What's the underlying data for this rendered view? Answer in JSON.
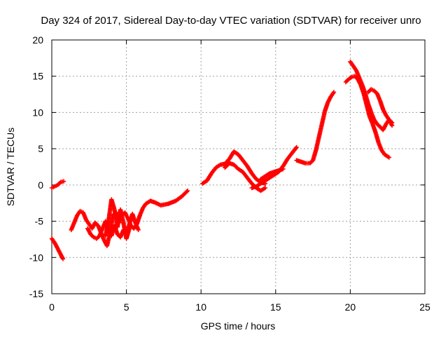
{
  "chart_data": {
    "type": "scatter",
    "title": "Day 324 of 2017, Sidereal Day-to-day VTEC variation (SDTVAR) for receiver unro",
    "xlabel": "GPS time / hours",
    "ylabel": "SDTVAR / TECUs",
    "xlim": [
      0,
      25
    ],
    "ylim": [
      -15,
      20
    ],
    "xticks": [
      0,
      5,
      10,
      15,
      20,
      25
    ],
    "yticks": [
      -15,
      -10,
      -5,
      0,
      5,
      10,
      15,
      20
    ],
    "grid": true,
    "marker": "plus",
    "series": [
      {
        "color": "#ff0000",
        "segments": [
          [
            [
              0.0,
              -0.4
            ],
            [
              0.2,
              -0.2
            ],
            [
              0.4,
              0.0
            ],
            [
              0.6,
              0.4
            ],
            [
              0.8,
              0.5
            ]
          ],
          [
            [
              0.0,
              -7.4
            ],
            [
              0.2,
              -8.0
            ],
            [
              0.4,
              -8.8
            ],
            [
              0.6,
              -9.6
            ],
            [
              0.75,
              -10.2
            ]
          ],
          [
            [
              1.3,
              -6.2
            ],
            [
              1.5,
              -5.2
            ],
            [
              1.7,
              -4.2
            ],
            [
              1.9,
              -3.6
            ],
            [
              2.1,
              -3.8
            ],
            [
              2.3,
              -4.8
            ],
            [
              2.5,
              -5.4
            ],
            [
              2.7,
              -6.0
            ],
            [
              2.9,
              -5.2
            ],
            [
              3.1,
              -5.6
            ],
            [
              3.3,
              -6.6
            ],
            [
              3.5,
              -7.6
            ],
            [
              3.7,
              -8.4
            ],
            [
              3.9,
              -6.6
            ],
            [
              4.1,
              -4.2
            ],
            [
              4.3,
              -3.8
            ],
            [
              4.5,
              -5.2
            ],
            [
              4.7,
              -4.2
            ],
            [
              4.9,
              -3.8
            ],
            [
              5.1,
              -4.6
            ],
            [
              5.3,
              -5.6
            ],
            [
              5.5,
              -6.0
            ],
            [
              5.7,
              -5.4
            ],
            [
              5.9,
              -4.2
            ],
            [
              6.1,
              -3.2
            ],
            [
              6.3,
              -2.6
            ],
            [
              6.6,
              -2.2
            ],
            [
              6.9,
              -2.4
            ],
            [
              7.3,
              -2.8
            ],
            [
              7.8,
              -2.6
            ],
            [
              8.3,
              -2.2
            ],
            [
              8.7,
              -1.6
            ],
            [
              9.1,
              -0.8
            ]
          ],
          [
            [
              2.4,
              -6.0
            ],
            [
              2.6,
              -6.8
            ],
            [
              2.8,
              -7.2
            ],
            [
              3.0,
              -7.4
            ],
            [
              3.2,
              -7.0
            ],
            [
              3.4,
              -6.0
            ],
            [
              3.6,
              -5.0
            ],
            [
              3.8,
              -6.4
            ],
            [
              4.0,
              -7.0
            ],
            [
              4.2,
              -5.6
            ],
            [
              4.4,
              -6.8
            ],
            [
              4.6,
              -7.2
            ],
            [
              4.8,
              -6.2
            ],
            [
              5.0,
              -6.8
            ],
            [
              5.2,
              -5.4
            ],
            [
              5.4,
              -4.0
            ],
            [
              5.6,
              -5.2
            ],
            [
              5.8,
              -6.2
            ]
          ],
          [
            [
              3.6,
              -7.0
            ],
            [
              3.8,
              -5.0
            ],
            [
              4.0,
              -2.0
            ],
            [
              4.2,
              -3.4
            ],
            [
              4.4,
              -5.8
            ],
            [
              4.6,
              -3.4
            ],
            [
              4.8,
              -5.2
            ],
            [
              5.0,
              -7.4
            ],
            [
              5.2,
              -6.0
            ]
          ],
          [
            [
              10.1,
              0.2
            ],
            [
              10.4,
              0.6
            ],
            [
              10.7,
              1.6
            ],
            [
              11.0,
              2.4
            ],
            [
              11.3,
              2.8
            ],
            [
              11.6,
              2.9
            ],
            [
              11.9,
              3.6
            ],
            [
              12.2,
              4.6
            ],
            [
              12.5,
              4.2
            ],
            [
              12.8,
              3.4
            ],
            [
              13.1,
              2.6
            ],
            [
              13.4,
              1.6
            ],
            [
              13.7,
              0.8
            ],
            [
              14.0,
              0.4
            ],
            [
              14.3,
              0.2
            ]
          ],
          [
            [
              11.6,
              2.4
            ],
            [
              11.9,
              3.0
            ],
            [
              12.2,
              2.8
            ],
            [
              12.5,
              2.2
            ],
            [
              12.8,
              1.8
            ],
            [
              13.1,
              1.0
            ],
            [
              13.4,
              0.2
            ],
            [
              13.7,
              -0.4
            ],
            [
              14.0,
              -0.8
            ],
            [
              14.3,
              -0.4
            ]
          ],
          [
            [
              13.4,
              -0.4
            ],
            [
              13.7,
              -0.2
            ],
            [
              14.0,
              0.2
            ],
            [
              14.3,
              0.6
            ],
            [
              14.6,
              1.0
            ],
            [
              14.9,
              1.4
            ],
            [
              15.2,
              1.8
            ],
            [
              15.5,
              2.6
            ],
            [
              15.8,
              3.6
            ],
            [
              16.1,
              4.4
            ],
            [
              16.4,
              5.2
            ]
          ],
          [
            [
              14.0,
              0.8
            ],
            [
              14.3,
              1.2
            ],
            [
              14.6,
              1.6
            ],
            [
              14.9,
              1.8
            ],
            [
              15.2,
              2.0
            ],
            [
              15.5,
              2.2
            ]
          ],
          [
            [
              16.4,
              3.4
            ],
            [
              16.7,
              3.2
            ],
            [
              17.0,
              3.0
            ],
            [
              17.3,
              3.0
            ],
            [
              17.5,
              3.4
            ],
            [
              17.7,
              4.8
            ],
            [
              17.9,
              6.6
            ],
            [
              18.1,
              8.4
            ],
            [
              18.3,
              10.2
            ],
            [
              18.5,
              11.4
            ],
            [
              18.7,
              12.2
            ],
            [
              18.9,
              12.8
            ]
          ],
          [
            [
              19.7,
              14.2
            ],
            [
              19.9,
              14.6
            ],
            [
              20.1,
              14.9
            ],
            [
              20.3,
              15.0
            ],
            [
              20.5,
              14.6
            ],
            [
              20.7,
              13.8
            ],
            [
              20.9,
              12.6
            ],
            [
              21.1,
              11.0
            ],
            [
              21.3,
              9.4
            ],
            [
              21.5,
              8.4
            ],
            [
              21.7,
              7.2
            ],
            [
              21.9,
              5.8
            ],
            [
              22.1,
              4.8
            ],
            [
              22.3,
              4.2
            ],
            [
              22.6,
              3.8
            ]
          ],
          [
            [
              20.0,
              17.0
            ],
            [
              20.2,
              16.4
            ],
            [
              20.4,
              15.8
            ],
            [
              20.6,
              14.8
            ],
            [
              20.8,
              13.8
            ],
            [
              21.0,
              12.6
            ],
            [
              21.2,
              11.2
            ],
            [
              21.4,
              10.0
            ],
            [
              21.6,
              9.0
            ],
            [
              21.8,
              8.4
            ],
            [
              22.0,
              8.0
            ],
            [
              22.2,
              7.6
            ],
            [
              22.4,
              8.4
            ],
            [
              22.6,
              9.0
            ],
            [
              22.8,
              8.6
            ]
          ],
          [
            [
              21.2,
              12.8
            ],
            [
              21.4,
              13.2
            ],
            [
              21.6,
              13.0
            ],
            [
              21.8,
              12.6
            ],
            [
              22.0,
              11.6
            ],
            [
              22.2,
              10.4
            ],
            [
              22.4,
              9.6
            ],
            [
              22.6,
              9.0
            ],
            [
              22.8,
              8.2
            ]
          ]
        ]
      }
    ]
  }
}
